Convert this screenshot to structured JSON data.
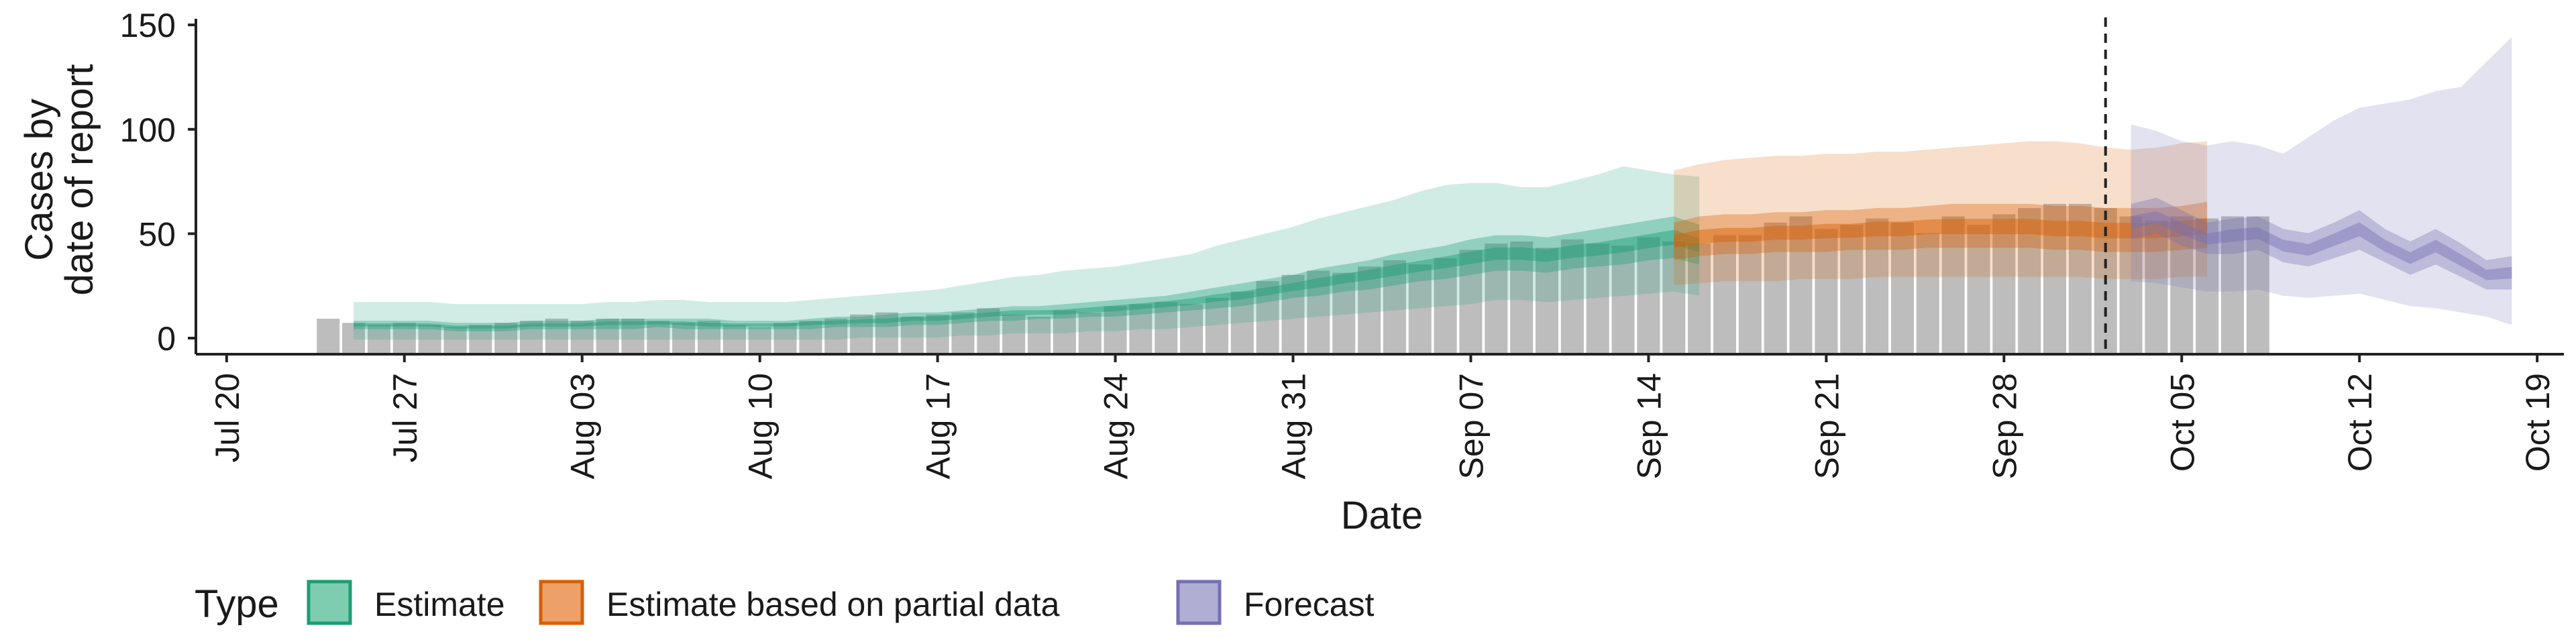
{
  "chart_data": {
    "type": "bar",
    "xlabel": "Date",
    "ylabel_lines": [
      "Cases by",
      "date of report"
    ],
    "ylim": [
      0,
      160
    ],
    "y_ticks": [
      0,
      50,
      100,
      150
    ],
    "x_range": [
      "2020-07-19",
      "2020-10-20"
    ],
    "x_ticks": [
      {
        "date": "2020-07-20",
        "label": "Jul 20"
      },
      {
        "date": "2020-07-27",
        "label": "Jul 27"
      },
      {
        "date": "2020-08-03",
        "label": "Aug 03"
      },
      {
        "date": "2020-08-10",
        "label": "Aug 10"
      },
      {
        "date": "2020-08-17",
        "label": "Aug 17"
      },
      {
        "date": "2020-08-24",
        "label": "Aug 24"
      },
      {
        "date": "2020-08-31",
        "label": "Aug 31"
      },
      {
        "date": "2020-09-07",
        "label": "Sep 07"
      },
      {
        "date": "2020-09-14",
        "label": "Sep 14"
      },
      {
        "date": "2020-09-21",
        "label": "Sep 21"
      },
      {
        "date": "2020-09-28",
        "label": "Sep 28"
      },
      {
        "date": "2020-10-05",
        "label": "Oct 05"
      },
      {
        "date": "2020-10-12",
        "label": "Oct 12"
      },
      {
        "date": "2020-10-19",
        "label": "Oct 19"
      }
    ],
    "forecast_start_date": "2020-10-02",
    "bars": {
      "start_date": "2020-07-24",
      "color": "#bdbdbd",
      "values": [
        17,
        15,
        14,
        15,
        14,
        13,
        14,
        15,
        16,
        17,
        16,
        17,
        17,
        16,
        15,
        16,
        14,
        13,
        15,
        16,
        17,
        19,
        20,
        18,
        19,
        20,
        22,
        19,
        18,
        21,
        20,
        23,
        24,
        25,
        24,
        27,
        30,
        35,
        38,
        40,
        39,
        42,
        45,
        43,
        46,
        50,
        53,
        54,
        51,
        55,
        53,
        52,
        56,
        54,
        53,
        57,
        57,
        63,
        66,
        60,
        62,
        65,
        63,
        58,
        66,
        62,
        67,
        70,
        72,
        72,
        70,
        66,
        64,
        66,
        65,
        66,
        66
      ]
    },
    "legend": {
      "title": "Type",
      "items": [
        {
          "label": "Estimate",
          "fill": "#7fcdb0",
          "stroke": "#1b9e77"
        },
        {
          "label": "Estimate based on partial data",
          "fill": "#eda067",
          "stroke": "#d95f02"
        },
        {
          "label": "Forecast",
          "fill": "#b1aed4",
          "stroke": "#7570b3"
        }
      ]
    },
    "series": [
      {
        "name": "Estimate",
        "color": "#1b9e77",
        "start_date": "2020-07-25",
        "median": [
          14,
          14,
          14,
          14,
          13,
          13,
          13,
          14,
          14,
          14,
          15,
          15,
          15,
          15,
          14,
          14,
          14,
          14,
          15,
          15,
          16,
          16,
          17,
          17,
          18,
          19,
          20,
          20,
          20,
          21,
          22,
          23,
          24,
          25,
          27,
          28,
          30,
          32,
          34,
          36,
          38,
          40,
          42,
          44,
          46,
          48,
          48,
          47,
          49,
          50,
          52,
          54,
          56,
          52
        ],
        "ci50_lower": [
          12,
          12,
          12,
          12,
          11,
          11,
          11,
          12,
          12,
          12,
          12,
          12,
          13,
          12,
          12,
          12,
          12,
          12,
          12,
          13,
          13,
          13,
          14,
          14,
          15,
          16,
          16,
          17,
          17,
          18,
          18,
          19,
          20,
          21,
          22,
          23,
          25,
          27,
          28,
          30,
          31,
          33,
          35,
          36,
          38,
          40,
          40,
          39,
          41,
          42,
          43,
          45,
          46,
          43
        ],
        "ci50_upper": [
          16,
          16,
          16,
          16,
          15,
          15,
          15,
          16,
          16,
          16,
          17,
          17,
          17,
          17,
          17,
          16,
          16,
          16,
          17,
          18,
          18,
          19,
          20,
          20,
          21,
          22,
          23,
          23,
          24,
          25,
          26,
          27,
          28,
          30,
          32,
          34,
          36,
          38,
          41,
          43,
          45,
          48,
          50,
          52,
          55,
          57,
          57,
          56,
          58,
          60,
          62,
          64,
          66,
          62
        ],
        "ci90_lower": [
          7,
          7,
          7,
          7,
          7,
          7,
          7,
          7,
          7,
          7,
          7,
          7,
          7,
          7,
          7,
          7,
          7,
          7,
          7,
          7,
          8,
          8,
          8,
          8,
          9,
          9,
          10,
          10,
          10,
          11,
          11,
          12,
          12,
          13,
          14,
          15,
          16,
          17,
          18,
          19,
          20,
          21,
          22,
          23,
          24,
          26,
          26,
          25,
          26,
          27,
          28,
          29,
          30,
          28
        ],
        "ci90_upper": [
          25,
          25,
          25,
          25,
          24,
          24,
          24,
          24,
          24,
          24,
          25,
          25,
          26,
          26,
          25,
          25,
          25,
          25,
          26,
          27,
          28,
          29,
          30,
          31,
          33,
          35,
          37,
          38,
          40,
          41,
          42,
          44,
          46,
          48,
          52,
          55,
          58,
          61,
          65,
          68,
          71,
          74,
          78,
          81,
          82,
          82,
          80,
          80,
          83,
          86,
          90,
          88,
          86,
          85
        ]
      },
      {
        "name": "Estimate based on partial data",
        "color": "#d95f02",
        "start_date": "2020-09-15",
        "median": [
          54,
          56,
          57,
          57,
          58,
          58,
          59,
          59,
          60,
          60,
          61,
          61,
          61,
          61,
          61,
          60,
          60,
          59,
          59,
          59,
          60,
          61
        ],
        "ci50_lower": [
          45,
          47,
          48,
          48,
          49,
          49,
          49,
          50,
          50,
          50,
          51,
          51,
          51,
          51,
          51,
          50,
          50,
          49,
          49,
          49,
          50,
          51
        ],
        "ci50_upper": [
          63,
          66,
          67,
          67,
          68,
          68,
          69,
          69,
          70,
          70,
          71,
          72,
          72,
          72,
          72,
          71,
          71,
          70,
          70,
          70,
          71,
          73
        ],
        "ci90_lower": [
          33,
          34,
          35,
          35,
          35,
          36,
          36,
          36,
          37,
          37,
          37,
          37,
          37,
          37,
          37,
          37,
          37,
          36,
          36,
          36,
          37,
          37
        ],
        "ci90_upper": [
          88,
          91,
          93,
          94,
          95,
          95,
          96,
          96,
          97,
          97,
          98,
          99,
          100,
          101,
          102,
          102,
          101,
          99,
          98,
          99,
          101,
          102
        ]
      },
      {
        "name": "Forecast",
        "color": "#7570b3",
        "start_date": "2020-10-03",
        "median": [
          63,
          65,
          60,
          55,
          57,
          58,
          52,
          50,
          55,
          60,
          52,
          46,
          52,
          45,
          38,
          39
        ],
        "ci50_lower": [
          55,
          58,
          52,
          48,
          48,
          50,
          44,
          42,
          46,
          50,
          44,
          38,
          43,
          37,
          31,
          31
        ],
        "ci50_upper": [
          72,
          75,
          69,
          63,
          65,
          66,
          60,
          58,
          63,
          69,
          60,
          54,
          60,
          53,
          45,
          47
        ],
        "ci90_lower": [
          35,
          34,
          32,
          30,
          30,
          31,
          28,
          27,
          28,
          29,
          26,
          23,
          22,
          20,
          18,
          14
        ],
        "ci90_upper": [
          110,
          107,
          102,
          100,
          102,
          100,
          96,
          104,
          112,
          118,
          120,
          122,
          126,
          128,
          140,
          152
        ]
      }
    ]
  }
}
